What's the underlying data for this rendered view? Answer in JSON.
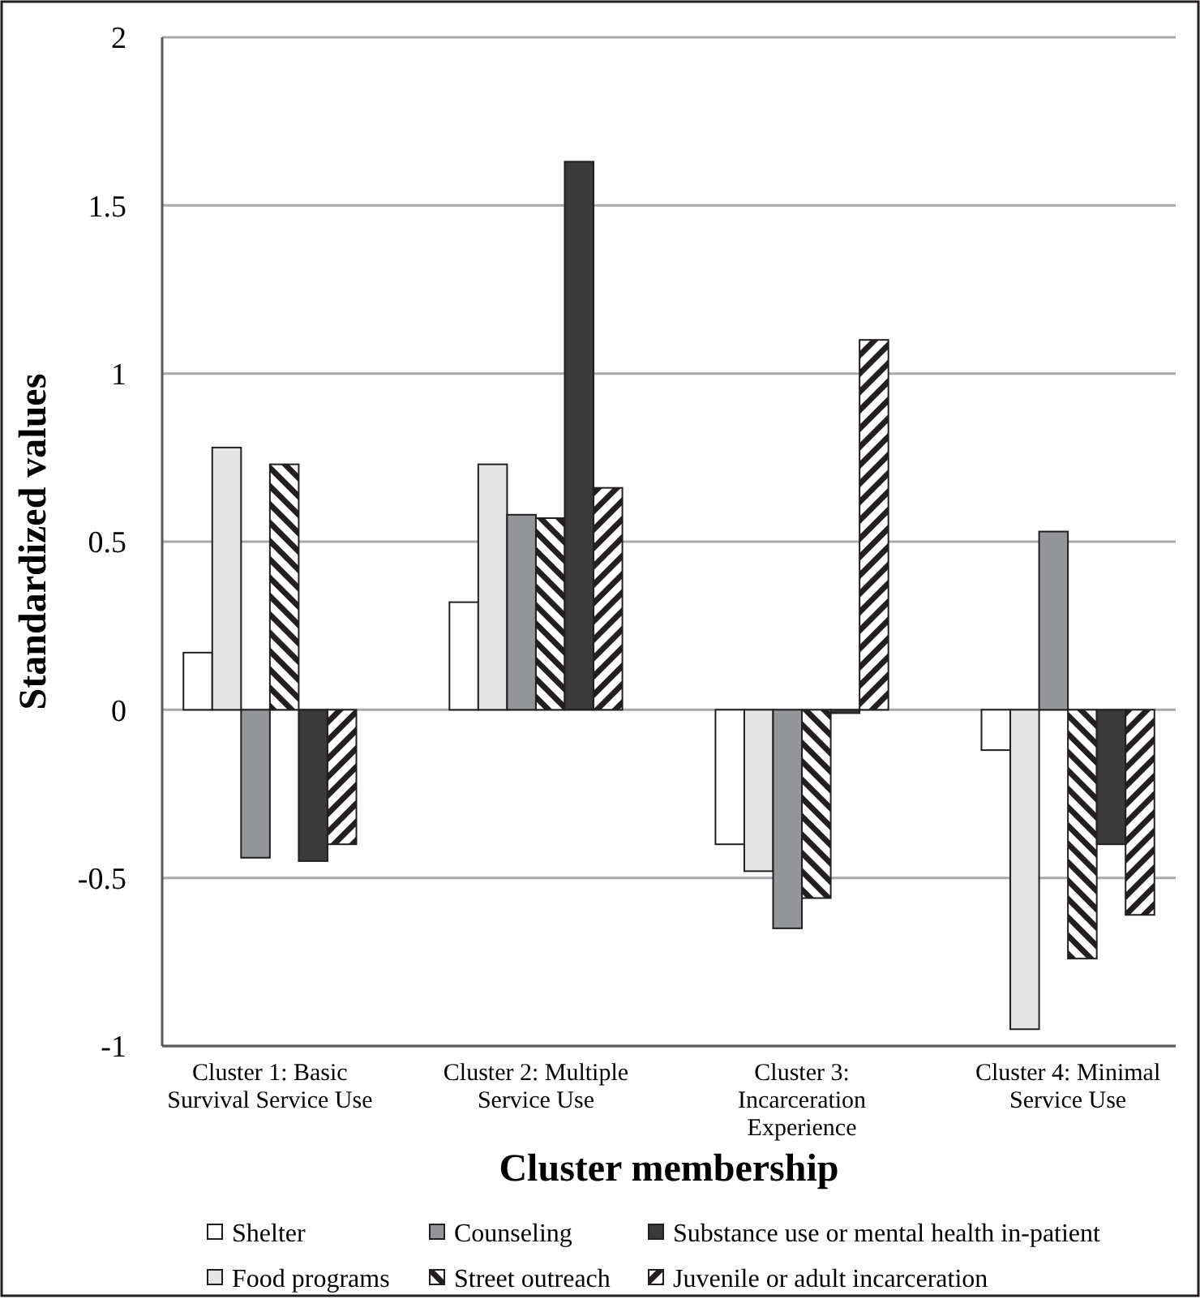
{
  "chart_data": {
    "type": "bar",
    "xlabel": "Cluster membership",
    "ylabel": "Standardized values",
    "categories": [
      "Cluster 1: Basic Survival Service Use",
      "Cluster 2: Multiple Service Use",
      "Cluster 3: Incarceration Experience",
      "Cluster 4: Minimal Service Use"
    ],
    "series": [
      {
        "name": "Shelter",
        "color": "#ffffff",
        "values": [
          0.17,
          0.32,
          -0.4,
          -0.12
        ]
      },
      {
        "name": "Food programs",
        "color": "#e6e6e6",
        "values": [
          0.78,
          0.73,
          -0.48,
          -0.95
        ]
      },
      {
        "name": "Counseling",
        "color": "#939598",
        "values": [
          -0.44,
          0.58,
          -0.65,
          0.53
        ]
      },
      {
        "name": "Street outreach",
        "color": "#231f20",
        "values": [
          0.73,
          0.57,
          -0.56,
          -0.74
        ]
      },
      {
        "name": "Substance use or mental health in-patient",
        "color": "#3a3a3a",
        "values": [
          -0.45,
          1.63,
          -0.01,
          -0.4
        ]
      },
      {
        "name": "Juvenile or adult incarceration",
        "color": "#231f21",
        "values": [
          -0.4,
          0.66,
          1.1,
          -0.61
        ]
      }
    ],
    "ylim": [
      -1,
      2
    ],
    "yticks": [
      -1,
      -0.5,
      0,
      0.5,
      1,
      1.5,
      2
    ],
    "grid": "y",
    "legend": "bottom"
  }
}
